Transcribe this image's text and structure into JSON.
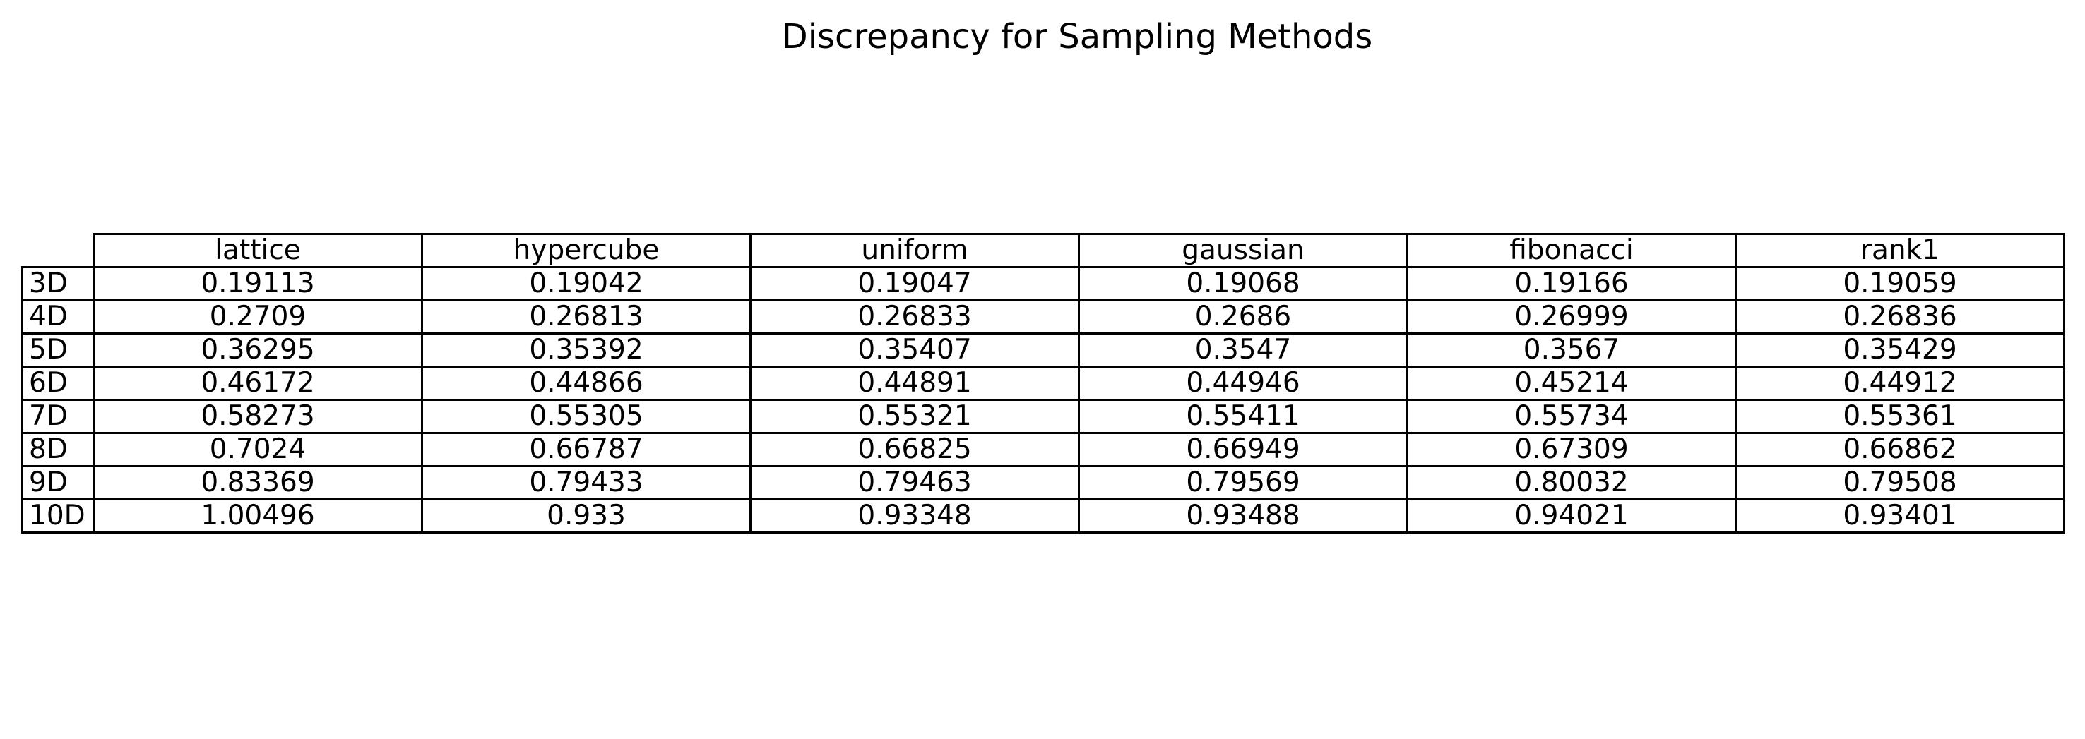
{
  "chart_data": {
    "type": "table",
    "title": "Discrepancy for Sampling Methods",
    "columns": [
      "lattice",
      "hypercube",
      "uniform",
      "gaussian",
      "fibonacci",
      "rank1"
    ],
    "rows": [
      {
        "label": "3D",
        "values": [
          "0.19113",
          "0.19042",
          "0.19047",
          "0.19068",
          "0.19166",
          "0.19059"
        ]
      },
      {
        "label": "4D",
        "values": [
          "0.2709",
          "0.26813",
          "0.26833",
          "0.2686",
          "0.26999",
          "0.26836"
        ]
      },
      {
        "label": "5D",
        "values": [
          "0.36295",
          "0.35392",
          "0.35407",
          "0.3547",
          "0.3567",
          "0.35429"
        ]
      },
      {
        "label": "6D",
        "values": [
          "0.46172",
          "0.44866",
          "0.44891",
          "0.44946",
          "0.45214",
          "0.44912"
        ]
      },
      {
        "label": "7D",
        "values": [
          "0.58273",
          "0.55305",
          "0.55321",
          "0.55411",
          "0.55734",
          "0.55361"
        ]
      },
      {
        "label": "8D",
        "values": [
          "0.7024",
          "0.66787",
          "0.66825",
          "0.66949",
          "0.67309",
          "0.66862"
        ]
      },
      {
        "label": "9D",
        "values": [
          "0.83369",
          "0.79433",
          "0.79463",
          "0.79569",
          "0.80032",
          "0.79508"
        ]
      },
      {
        "label": "10D",
        "values": [
          "1.00496",
          "0.933",
          "0.93348",
          "0.93488",
          "0.94021",
          "0.93401"
        ]
      }
    ]
  }
}
